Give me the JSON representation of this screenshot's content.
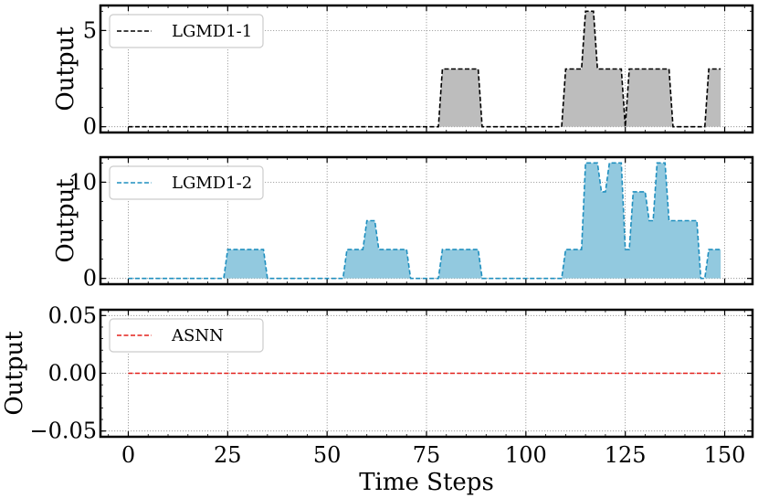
{
  "chart_data": [
    {
      "type": "area",
      "ylabel": "Output",
      "xlim": [
        -7,
        157
      ],
      "ylim": [
        -0.3,
        6.3
      ],
      "yticks": [
        0,
        5
      ],
      "legend": "top-left",
      "grid": true,
      "series": [
        {
          "name": "LGMD1-1",
          "color": "#000000",
          "fill": "#bdbdbd",
          "x": [
            0,
            78,
            79,
            88,
            89,
            109,
            110,
            114,
            115,
            117,
            118,
            119,
            120,
            124,
            125,
            126,
            127,
            136,
            137,
            140,
            141,
            144,
            145,
            146,
            147,
            149
          ],
          "y": [
            0,
            0,
            3,
            3,
            0,
            0,
            3,
            3,
            6,
            6,
            3,
            3,
            3,
            3,
            0,
            3,
            3,
            3,
            0,
            0,
            0,
            0,
            0,
            3,
            3,
            3
          ]
        }
      ]
    },
    {
      "type": "area",
      "ylabel": "Output",
      "xlim": [
        -7,
        157
      ],
      "ylim": [
        -0.6,
        12.6
      ],
      "yticks": [
        0,
        10
      ],
      "legend": "top-left",
      "grid": true,
      "series": [
        {
          "name": "LGMD1-2",
          "color": "#1f8fbf",
          "fill": "#92c9df",
          "x": [
            0,
            24,
            25,
            34,
            35,
            54,
            55,
            59,
            60,
            62,
            63,
            64,
            65,
            70,
            71,
            78,
            79,
            88,
            89,
            109,
            110,
            114,
            115,
            118,
            119,
            120,
            121,
            124,
            125,
            126,
            127,
            130,
            131,
            132,
            133,
            135,
            136,
            138,
            139,
            143,
            144,
            145,
            146,
            149
          ],
          "y": [
            0,
            0,
            3,
            3,
            0,
            0,
            3,
            3,
            6,
            6,
            3,
            3,
            3,
            3,
            0,
            0,
            3,
            3,
            0,
            0,
            3,
            3,
            12,
            12,
            9,
            9,
            12,
            12,
            3,
            3,
            9,
            9,
            6,
            6,
            12,
            12,
            6,
            6,
            6,
            6,
            0,
            0,
            3,
            3
          ]
        }
      ]
    },
    {
      "type": "line",
      "ylabel": "Output",
      "xlabel": "Time Steps",
      "xlim": [
        -7,
        157
      ],
      "ylim": [
        -0.055,
        0.055
      ],
      "yticks": [
        0.05,
        0.0,
        -0.05
      ],
      "ytick_labels": [
        "0.05",
        "0.00",
        "−0.05"
      ],
      "xticks": [
        0,
        25,
        50,
        75,
        100,
        125,
        150
      ],
      "xtick_labels": [
        "0",
        "25",
        "50",
        "75",
        "100",
        "125",
        "150"
      ],
      "legend": "top-left",
      "grid": true,
      "series": [
        {
          "name": "ASNN",
          "color": "#e3201b",
          "x": [
            0,
            149
          ],
          "y": [
            0,
            0
          ]
        }
      ]
    }
  ]
}
